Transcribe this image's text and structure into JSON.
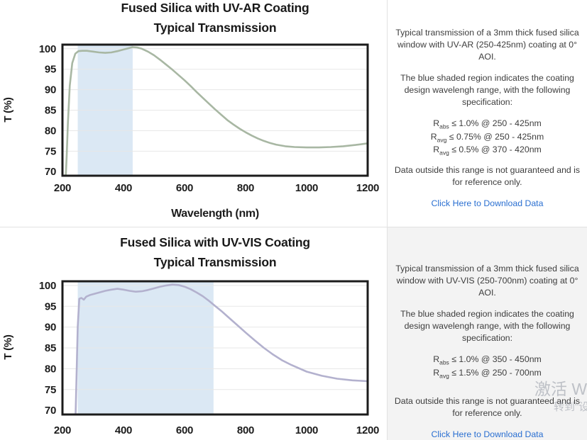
{
  "panels": {
    "uvar": {
      "p1": "Typical transmission of a 3mm thick fused silica window with UV-AR (250-425nm) coating at 0° AOI.",
      "p2": "The blue shaded region indicates the coating design wavelengh range, with the following specification:",
      "specs": [
        {
          "base": "R",
          "sub": "abs",
          "rest": " ≤ 1.0% @ 250 - 425nm"
        },
        {
          "base": "R",
          "sub": "avg",
          "rest": " ≤ 0.75% @ 250 - 425nm"
        },
        {
          "base": "R",
          "sub": "avg",
          "rest": " ≤ 0.5% @ 370 - 420nm"
        }
      ],
      "p3": "Data outside this range is not guaranteed and is for reference only.",
      "link": "Click Here to Download Data"
    },
    "uvvis": {
      "p1": "Typical transmission of a 3mm thick fused silica window with UV-VIS (250-700nm) coating at 0° AOI.",
      "p2": "The blue shaded region indicates the coating design wavelengh range, with the following specification:",
      "specs": [
        {
          "base": "R",
          "sub": "abs",
          "rest": " ≤ 1.0% @ 350 - 450nm"
        },
        {
          "base": "R",
          "sub": "avg",
          "rest": " ≤ 1.5% @ 250 - 700nm"
        }
      ],
      "p3": "Data outside this range is not guaranteed and is for reference only.",
      "link": "Click Here to Download Data"
    }
  },
  "link_color": "#2a6fd1",
  "watermark": {
    "line1": "激活 W",
    "line2": "转到\"设"
  },
  "chart_data": [
    {
      "type": "line",
      "title": "Fused Silica with UV-AR Coating",
      "subtitle": "Typical Transmission",
      "xlabel": "Wavelength (nm)",
      "ylabel": "T (%)",
      "xlim": [
        200,
        1200
      ],
      "ylim": [
        69,
        101
      ],
      "xticks": [
        200,
        400,
        600,
        800,
        1000,
        1200
      ],
      "yticks": [
        70,
        75,
        80,
        85,
        90,
        95,
        100
      ],
      "grid": true,
      "band": [
        250,
        430
      ],
      "band_color": "#dbe8f4",
      "line_color": "#a8b7a3",
      "x": [
        211,
        214,
        218,
        224,
        232,
        242,
        252,
        265,
        280,
        300,
        320,
        340,
        360,
        380,
        400,
        415,
        430,
        445,
        460,
        480,
        500,
        520,
        540,
        560,
        580,
        600,
        620,
        640,
        660,
        680,
        700,
        720,
        740,
        760,
        780,
        800,
        820,
        840,
        860,
        880,
        900,
        930,
        960,
        1000,
        1040,
        1080,
        1120,
        1160,
        1200
      ],
      "y": [
        69,
        74,
        82,
        91,
        96.5,
        98.8,
        99.4,
        99.5,
        99.5,
        99.3,
        99.1,
        99.0,
        99.1,
        99.4,
        99.8,
        100.1,
        100.4,
        100.3,
        100.0,
        99.3,
        98.4,
        97.3,
        96.1,
        94.9,
        93.6,
        92.3,
        90.9,
        89.4,
        88.0,
        86.6,
        85.2,
        83.9,
        82.6,
        81.5,
        80.5,
        79.6,
        78.8,
        78.1,
        77.5,
        77.0,
        76.6,
        76.2,
        76.0,
        75.9,
        75.9,
        76.0,
        76.2,
        76.5,
        76.9
      ]
    },
    {
      "type": "line",
      "title": "Fused Silica with UV-VIS Coating",
      "subtitle": "Typical Transmission",
      "xlabel": "",
      "ylabel": "T (%)",
      "xlim": [
        200,
        1200
      ],
      "ylim": [
        69,
        101
      ],
      "xticks": [
        200,
        400,
        600,
        800,
        1000,
        1200
      ],
      "yticks": [
        70,
        75,
        80,
        85,
        90,
        95,
        100
      ],
      "grid": true,
      "band": [
        250,
        695
      ],
      "band_color": "#dbe8f4",
      "line_color": "#b3b1ce",
      "x": [
        243,
        246,
        250,
        255,
        262,
        270,
        278,
        290,
        305,
        320,
        340,
        360,
        380,
        400,
        420,
        440,
        460,
        480,
        500,
        520,
        540,
        560,
        580,
        600,
        620,
        640,
        660,
        680,
        700,
        720,
        740,
        760,
        780,
        800,
        830,
        860,
        890,
        920,
        950,
        1000,
        1050,
        1100,
        1150,
        1200
      ],
      "y": [
        69,
        78,
        90,
        96.8,
        97.0,
        96.6,
        97.3,
        97.7,
        98.0,
        98.3,
        98.7,
        99.0,
        99.2,
        99.0,
        98.7,
        98.5,
        98.6,
        98.9,
        99.3,
        99.7,
        100.0,
        100.2,
        100.1,
        99.7,
        99.1,
        98.3,
        97.4,
        96.3,
        95.1,
        93.9,
        92.6,
        91.3,
        90.0,
        88.7,
        86.8,
        85.0,
        83.4,
        82.0,
        80.9,
        79.3,
        78.3,
        77.6,
        77.2,
        77.0
      ]
    }
  ]
}
